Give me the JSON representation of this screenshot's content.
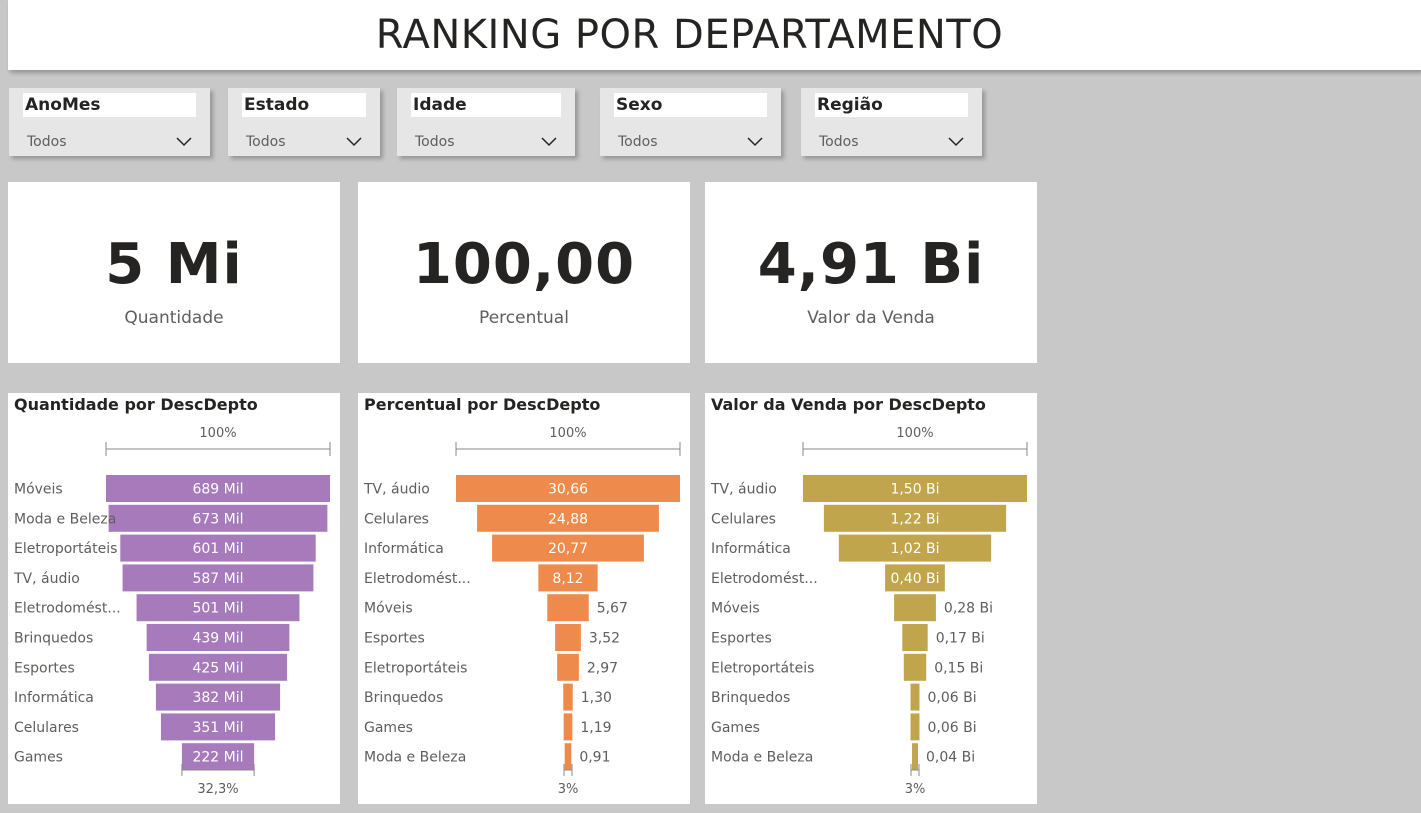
{
  "header": {
    "title": "RANKING POR DEPARTAMENTO"
  },
  "filters": [
    {
      "label": "AnoMes",
      "value": "Todos"
    },
    {
      "label": "Estado",
      "value": "Todos"
    },
    {
      "label": "Idade",
      "value": "Todos"
    },
    {
      "label": "Sexo",
      "value": "Todos"
    },
    {
      "label": "Região",
      "value": "Todos"
    }
  ],
  "cards": [
    {
      "value": "5 Mi",
      "label": "Quantidade"
    },
    {
      "value": "100,00",
      "label": "Percentual"
    },
    {
      "value": "4,91 Bi",
      "label": "Valor da Venda"
    }
  ],
  "chart_data": [
    {
      "type": "bar",
      "subtype": "funnel",
      "title": "Quantidade por DescDepto",
      "color": "#a77bbb",
      "top_label": "100%",
      "bottom_label": "32,3%",
      "categories": [
        "Móveis",
        "Moda e Beleza",
        "Eletroportáteis",
        "TV, áudio",
        "Eletrodomést...",
        "Brinquedos",
        "Esportes",
        "Informática",
        "Celulares",
        "Games"
      ],
      "values": [
        689,
        673,
        601,
        587,
        501,
        439,
        425,
        382,
        351,
        222
      ],
      "value_labels": [
        "689 Mil",
        "673 Mil",
        "601 Mil",
        "587 Mil",
        "501 Mil",
        "439 Mil",
        "425 Mil",
        "382 Mil",
        "351 Mil",
        "222 Mil"
      ]
    },
    {
      "type": "bar",
      "subtype": "funnel",
      "title": "Percentual por DescDepto",
      "color": "#ed8a4c",
      "top_label": "100%",
      "bottom_label": "3%",
      "categories": [
        "TV, áudio",
        "Celulares",
        "Informática",
        "Eletrodomést...",
        "Móveis",
        "Esportes",
        "Eletroportáteis",
        "Brinquedos",
        "Games",
        "Moda e Beleza"
      ],
      "values": [
        30.66,
        24.88,
        20.77,
        8.12,
        5.67,
        3.52,
        2.97,
        1.3,
        1.19,
        0.91
      ],
      "value_labels": [
        "30,66",
        "24,88",
        "20,77",
        "8,12",
        "5,67",
        "3,52",
        "2,97",
        "1,30",
        "1,19",
        "0,91"
      ]
    },
    {
      "type": "bar",
      "subtype": "funnel",
      "title": "Valor da Venda por DescDepto",
      "color": "#c1a54c",
      "top_label": "100%",
      "bottom_label": "3%",
      "categories": [
        "TV, áudio",
        "Celulares",
        "Informática",
        "Eletrodomést...",
        "Móveis",
        "Esportes",
        "Eletroportáteis",
        "Brinquedos",
        "Games",
        "Moda e Beleza"
      ],
      "values": [
        1.5,
        1.22,
        1.02,
        0.4,
        0.28,
        0.17,
        0.15,
        0.06,
        0.06,
        0.04
      ],
      "value_labels": [
        "1,50 Bi",
        "1,22 Bi",
        "1,02 Bi",
        "0,40 Bi",
        "0,28 Bi",
        "0,17 Bi",
        "0,15 Bi",
        "0,06 Bi",
        "0,06 Bi",
        "0,04 Bi"
      ]
    }
  ],
  "icons": {
    "dropdown": "chevron-down-icon"
  }
}
